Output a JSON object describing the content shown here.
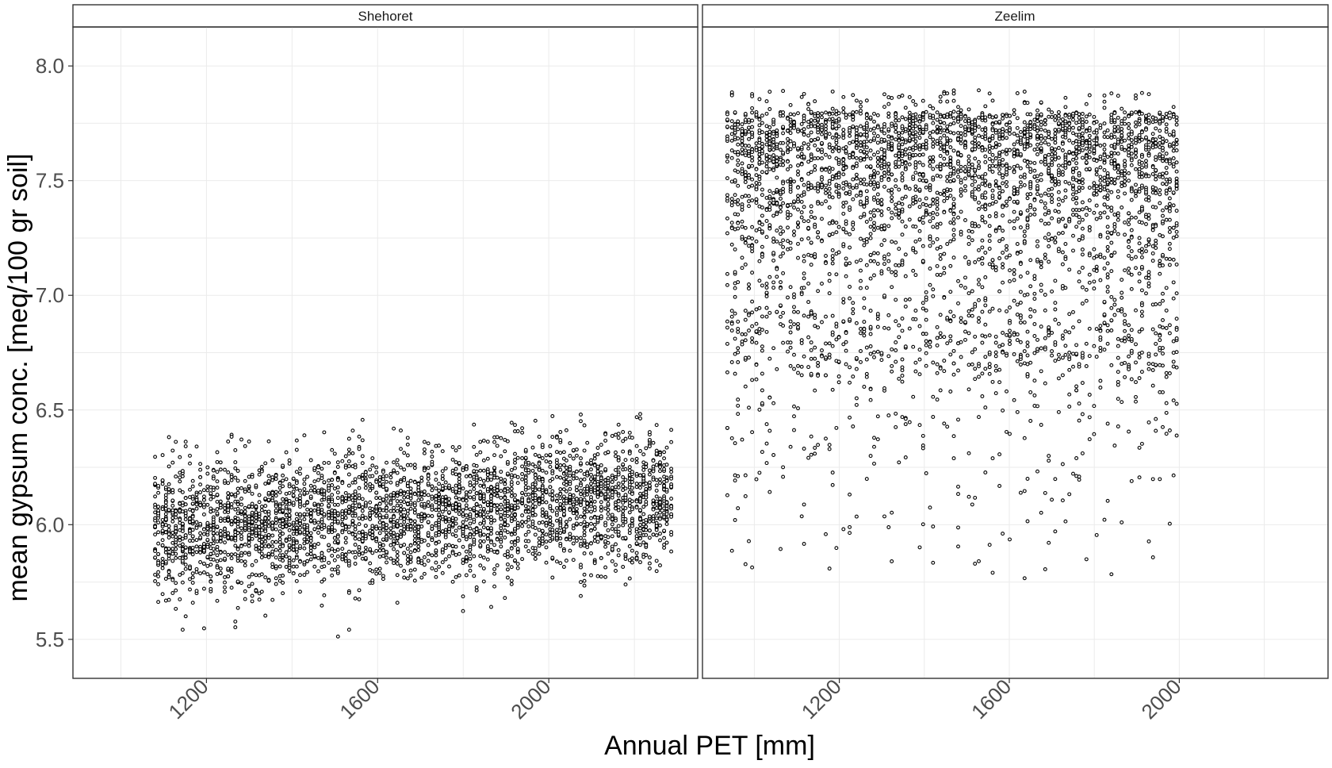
{
  "colors": {
    "background": "#ffffff",
    "panel_border": "#333333",
    "strip_fill": "#ffffff",
    "grid": "#ebebeb",
    "point_stroke": "#000000",
    "tick_text": "#4d4d4d"
  },
  "chart_data": {
    "type": "scatter",
    "xlabel": "Annual PET [mm]",
    "ylabel": "mean gypsum conc. [meq/100 gr soil]",
    "shared_y_axis": true,
    "ylim": [
      5.33,
      8.17
    ],
    "yticks": [
      5.5,
      6.0,
      6.5,
      7.0,
      7.5,
      8.0
    ],
    "ytick_labels": [
      "5.5",
      "6.0",
      "6.5",
      "7.0",
      "7.5",
      "8.0"
    ],
    "xtick_rotation_deg": 45,
    "grid": true,
    "point_style": "hollow-circle",
    "panels": [
      {
        "strip_label": "Shehoret",
        "xlim": [
          888,
          2348
        ],
        "xticks": [
          1200,
          1600,
          2000
        ],
        "xtick_labels": [
          "1200",
          "1600",
          "2000"
        ],
        "series": {
          "x_range": [
            1080,
            2285
          ],
          "n_columns": 150,
          "points_per_column": 24,
          "y_mean_start": 5.97,
          "y_mean_end": 6.12,
          "y_sd": 0.14,
          "y_min_shown": 5.45,
          "y_max_shown": 6.53
        }
      },
      {
        "strip_label": "Zeelim",
        "xlim": [
          878,
          2350
        ],
        "xticks": [
          1200,
          1600,
          2000
        ],
        "xtick_labels": [
          "1200",
          "1600",
          "2000"
        ],
        "series": {
          "x_range": [
            938,
            1995
          ],
          "n_columns": 130,
          "points_per_column": 30,
          "y_mode": 7.8,
          "y_min_shown": 5.75,
          "y_max_shown": 7.94
        }
      }
    ]
  }
}
